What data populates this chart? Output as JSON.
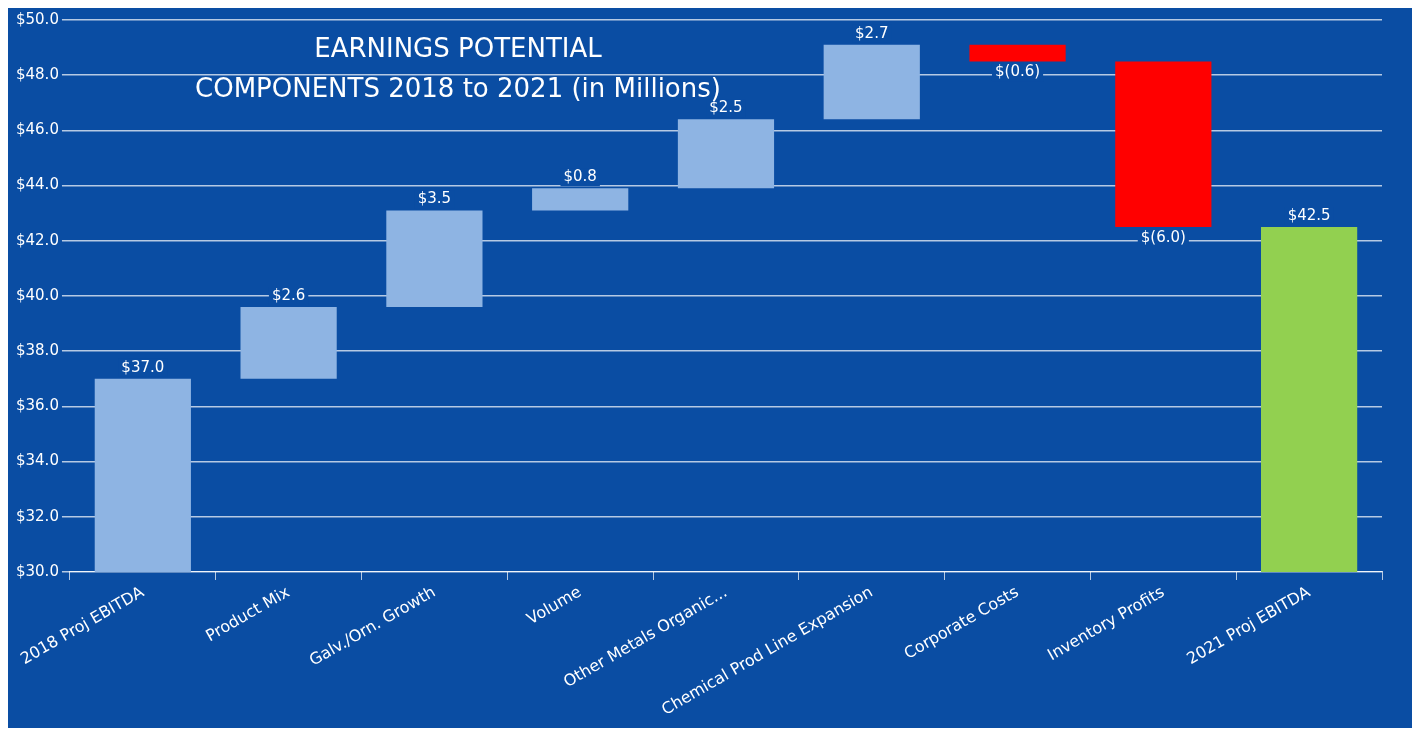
{
  "chart_data": {
    "type": "bar",
    "title": "EARNINGS POTENTIAL\nCOMPONENTS 2018 to 2021 (in Millions)",
    "categories": [
      "2018 Proj EBITDA",
      "Product Mix",
      "Galv./Orn. Growth",
      "Volume",
      "Other Metals Organic...",
      "Chemical Prod Line Expansion",
      "Corporate Costs",
      "Inventory Profits",
      "2021 Proj EBITDA"
    ],
    "values": [
      7.0,
      2.6,
      3.5,
      0.8,
      2.5,
      2.7,
      -0.6,
      -6.0,
      12.5
    ],
    "base": [
      30,
      37.0,
      39.6,
      43.1,
      43.9,
      46.4,
      49.1,
      48.5,
      30
    ],
    "colors": [
      "#8eb4e3",
      "#8eb4e3",
      "#8eb4e3",
      "#8eb4e3",
      "#8eb4e3",
      "#8eb4e3",
      "#ff0000",
      "#ff0000",
      "#92d050"
    ],
    "value_labels": [
      "$37.0",
      "$2.6",
      "$3.5",
      "$0.8",
      "$2.5",
      "$2.7",
      "$(0.6)",
      "$(6.0)",
      "$42.5"
    ],
    "ylim": [
      30,
      50
    ],
    "yticks": [
      {
        "value": 30,
        "label": "$30.0"
      },
      {
        "value": 32,
        "label": "$32.0"
      },
      {
        "value": 34,
        "label": "$34.0"
      },
      {
        "value": 36,
        "label": "$36.0"
      },
      {
        "value": 38,
        "label": "$38.0"
      },
      {
        "value": 40,
        "label": "$40.0"
      },
      {
        "value": 42,
        "label": "$42.0"
      },
      {
        "value": 44,
        "label": "$44.0"
      },
      {
        "value": 46,
        "label": "$46.0"
      },
      {
        "value": 48,
        "label": "$48.0"
      },
      {
        "value": 50,
        "label": "$50.0"
      }
    ],
    "grid": "y",
    "legend": false
  }
}
